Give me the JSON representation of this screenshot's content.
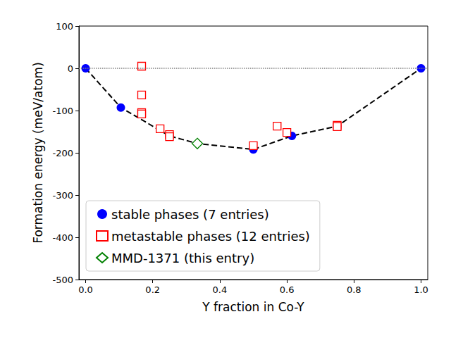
{
  "chart_data": {
    "type": "scatter",
    "xlabel": "Y fraction in Co-Y",
    "ylabel": "Formation energy (meV/atom)",
    "xlim": [
      -0.02,
      1.02
    ],
    "xticks": [
      {
        "value": 0,
        "label": "0.0"
      },
      {
        "value": 0.2,
        "label": "0.2"
      },
      {
        "value": 0.4,
        "label": "0.4"
      },
      {
        "value": 0.6,
        "label": "0.6"
      },
      {
        "value": 0.8,
        "label": "0.8"
      },
      {
        "value": 1,
        "label": "1.0"
      }
    ],
    "ylim": [
      -500,
      100
    ],
    "yticks": [
      -500,
      -400,
      -300,
      -200,
      -100,
      0,
      100
    ],
    "grid": false,
    "legend": "lower left",
    "series": [
      {
        "type": "hline",
        "y": 0,
        "color": "#808080",
        "line_style": "dotted"
      },
      {
        "type": "line",
        "color": "#000000",
        "line_style": "dashed",
        "x": [
          0,
          0.105,
          0.25,
          0.333,
          0.5,
          0.615,
          0.75,
          1.0
        ],
        "values": [
          0,
          -93,
          -160,
          -178,
          -192,
          -160,
          -137,
          0
        ]
      },
      {
        "type": "scatter",
        "name": "stable phases (7 entries)",
        "color": "#0000ff",
        "marker": "circle",
        "x": [
          0,
          0.105,
          0.25,
          0.5,
          0.615,
          0.75,
          1.0
        ],
        "values": [
          0,
          -93,
          -160,
          -192,
          -160,
          -137,
          0
        ]
      },
      {
        "type": "scatter",
        "name": "metastable phases (12 entries)",
        "color": "#ff0000",
        "marker": "open_square",
        "x": [
          0.167,
          0.167,
          0.167,
          0.167,
          0.222,
          0.25,
          0.25,
          0.5,
          0.571,
          0.6,
          0.75,
          0.75
        ],
        "values": [
          5,
          -63,
          -105,
          -108,
          -143,
          -157,
          -162,
          -183,
          -137,
          -152,
          -135,
          -138
        ]
      },
      {
        "type": "scatter",
        "name": "MMD-1371 (this entry)",
        "color": "#008000",
        "marker": "open_diamond",
        "x": [
          0.333
        ],
        "values": [
          -178
        ]
      }
    ]
  }
}
